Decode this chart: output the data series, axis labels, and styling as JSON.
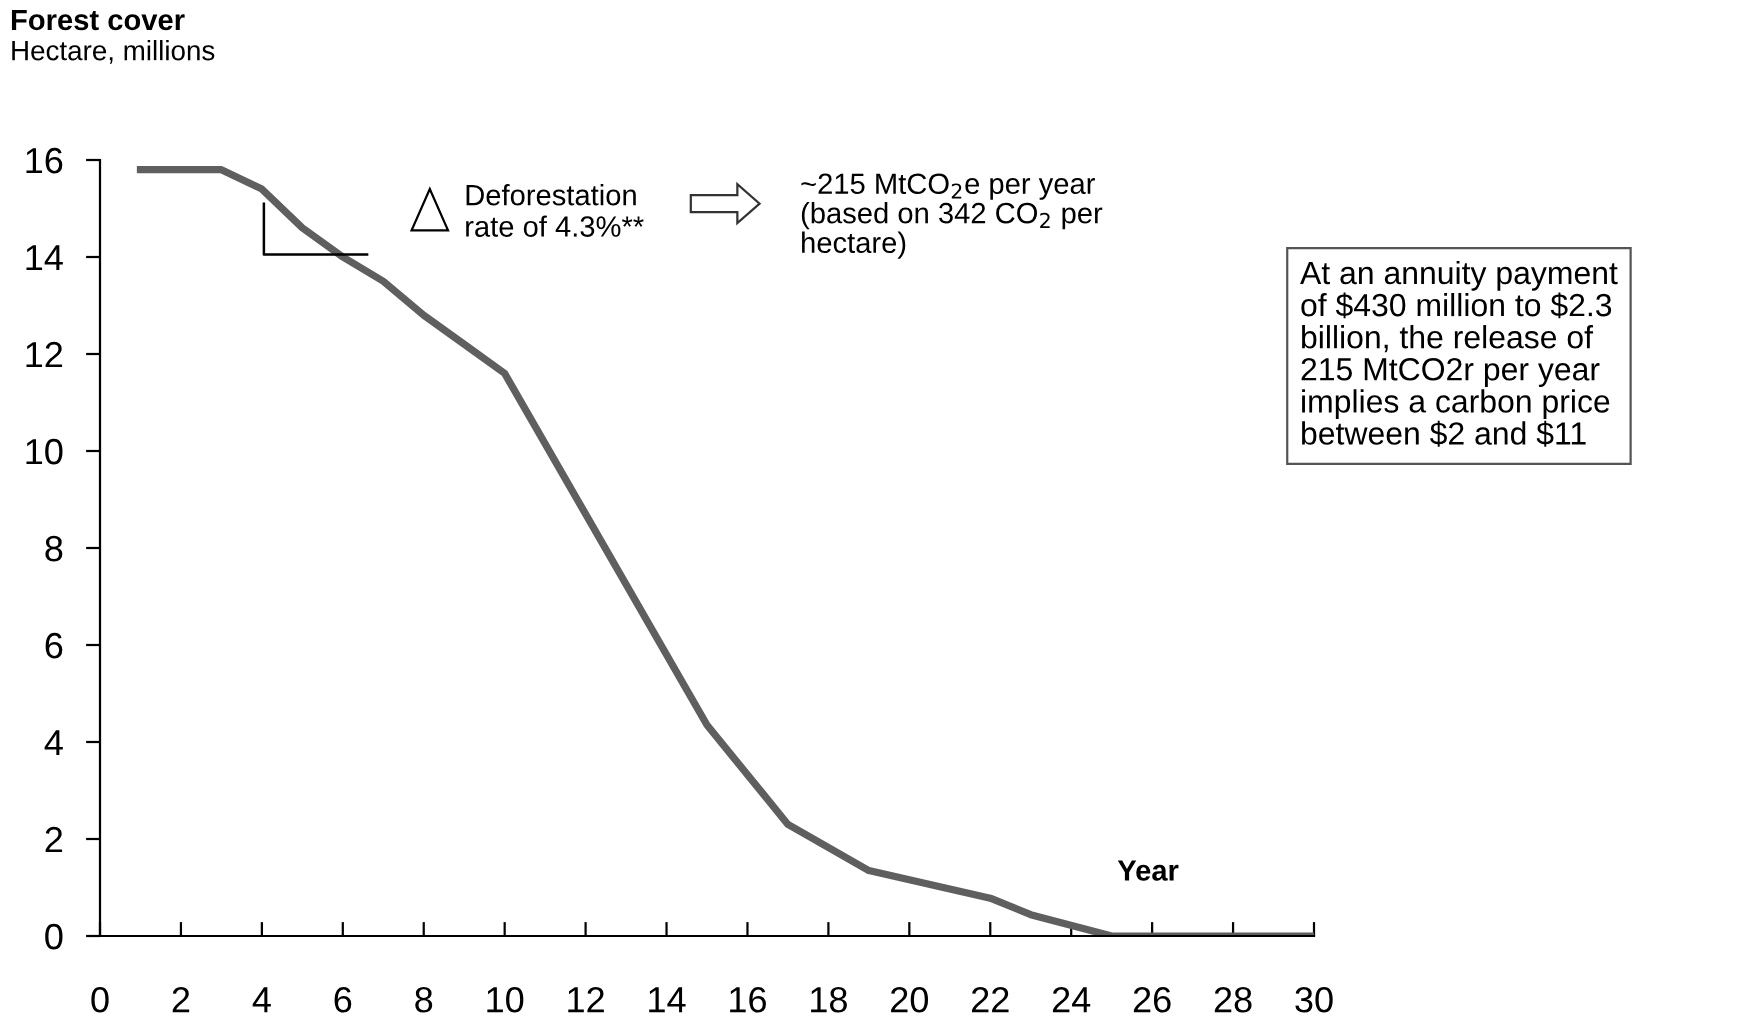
{
  "chart_data": {
    "type": "line",
    "title": "Forest cover",
    "subtitle": "Hectare, millions",
    "xlabel": "Year",
    "x": [
      1,
      3,
      4,
      5,
      6,
      7,
      8,
      9,
      10,
      15,
      17,
      19,
      22,
      23,
      25,
      30
    ],
    "series": [
      {
        "color": "#5f5f5f",
        "values": [
          15.8,
          15.8,
          15.4,
          14.6,
          14.0,
          13.5,
          12.8,
          12.2,
          11.6,
          4.35,
          2.3,
          1.35,
          0.78,
          0.44,
          0,
          0
        ]
      }
    ],
    "xlim": [
      0,
      30
    ],
    "xticks": [
      0,
      2,
      4,
      6,
      8,
      10,
      12,
      14,
      16,
      18,
      20,
      22,
      24,
      26,
      28,
      30
    ],
    "ylim": [
      0,
      16
    ],
    "yticks": [
      0,
      2,
      4,
      6,
      8,
      10,
      12,
      14,
      16
    ],
    "marker": "none",
    "line_style": "solid",
    "annotations": [
      "Deforestation\nrate of 4.3%**",
      "~215 MtCO$_{2}$e per year\n(based on 342 CO$_{2}$ per\nhectare)",
      "At an annuity payment\nof $430 million to $2.3\nbillion, the release of\n215 MtCO2r per year\nimplies a carbon price\nbetween $2 and $11"
    ]
  }
}
